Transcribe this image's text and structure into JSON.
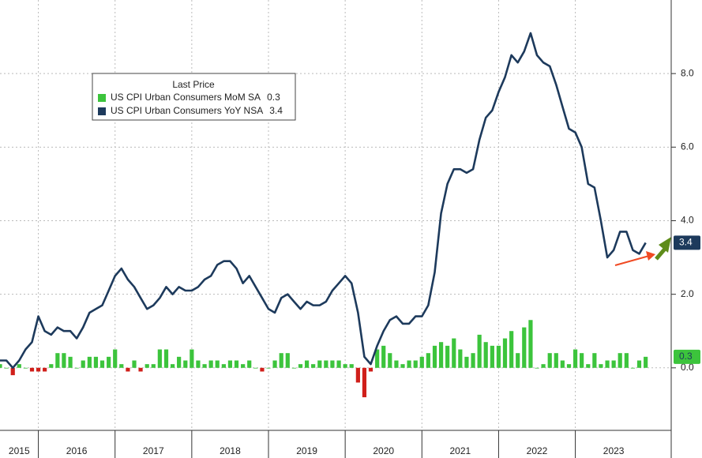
{
  "chart_data": {
    "type": "bar_line",
    "legend_title": "Last Price",
    "x": [
      2015.5,
      2015.583,
      2015.667,
      2015.75,
      2015.833,
      2015.917,
      2016,
      2016.083,
      2016.167,
      2016.25,
      2016.333,
      2016.417,
      2016.5,
      2016.583,
      2016.667,
      2016.75,
      2016.833,
      2016.917,
      2017,
      2017.083,
      2017.167,
      2017.25,
      2017.333,
      2017.417,
      2017.5,
      2017.583,
      2017.667,
      2017.75,
      2017.833,
      2017.917,
      2018,
      2018.083,
      2018.167,
      2018.25,
      2018.333,
      2018.417,
      2018.5,
      2018.583,
      2018.667,
      2018.75,
      2018.833,
      2018.917,
      2019,
      2019.083,
      2019.167,
      2019.25,
      2019.333,
      2019.417,
      2019.5,
      2019.583,
      2019.667,
      2019.75,
      2019.833,
      2019.917,
      2020,
      2020.083,
      2020.167,
      2020.25,
      2020.333,
      2020.417,
      2020.5,
      2020.583,
      2020.667,
      2020.75,
      2020.833,
      2020.917,
      2021,
      2021.083,
      2021.167,
      2021.25,
      2021.333,
      2021.417,
      2021.5,
      2021.583,
      2021.667,
      2021.75,
      2021.833,
      2021.917,
      2022,
      2022.083,
      2022.167,
      2022.25,
      2022.333,
      2022.417,
      2022.5,
      2022.583,
      2022.667,
      2022.75,
      2022.833,
      2022.917,
      2023,
      2023.083,
      2023.167,
      2023.25,
      2023.333,
      2023.417,
      2023.5,
      2023.583,
      2023.667,
      2023.75,
      2023.833,
      2023.917
    ],
    "series": [
      {
        "name": "US CPI Urban Consumers MoM SA",
        "type": "bar",
        "color": "#3cc43c",
        "negative_color": "#d01f1a",
        "values": [
          0.1,
          0.0,
          -0.2,
          0.1,
          0.0,
          -0.1,
          -0.1,
          -0.1,
          0.1,
          0.4,
          0.4,
          0.3,
          0.0,
          0.2,
          0.3,
          0.3,
          0.2,
          0.3,
          0.5,
          0.1,
          -0.1,
          0.2,
          -0.1,
          0.1,
          0.1,
          0.5,
          0.5,
          0.1,
          0.3,
          0.2,
          0.5,
          0.2,
          0.1,
          0.2,
          0.2,
          0.1,
          0.2,
          0.2,
          0.1,
          0.2,
          0.0,
          -0.1,
          0.0,
          0.2,
          0.4,
          0.4,
          0.0,
          0.1,
          0.2,
          0.1,
          0.2,
          0.2,
          0.2,
          0.2,
          0.1,
          0.1,
          -0.4,
          -0.8,
          -0.1,
          0.5,
          0.6,
          0.4,
          0.2,
          0.1,
          0.2,
          0.2,
          0.3,
          0.4,
          0.6,
          0.7,
          0.6,
          0.8,
          0.5,
          0.3,
          0.4,
          0.9,
          0.7,
          0.6,
          0.6,
          0.8,
          1.0,
          0.4,
          1.1,
          1.3,
          0.0,
          0.1,
          0.4,
          0.4,
          0.2,
          0.1,
          0.5,
          0.4,
          0.1,
          0.4,
          0.1,
          0.2,
          0.2,
          0.4,
          0.4,
          0.0,
          0.2,
          0.3
        ]
      },
      {
        "name": "US CPI Urban Consumers YoY NSA",
        "type": "line",
        "color": "#1d3a5c",
        "values": [
          0.2,
          0.2,
          0.0,
          0.2,
          0.5,
          0.7,
          1.4,
          1.0,
          0.9,
          1.1,
          1.0,
          1.0,
          0.8,
          1.1,
          1.5,
          1.6,
          1.7,
          2.1,
          2.5,
          2.7,
          2.4,
          2.2,
          1.9,
          1.6,
          1.7,
          1.9,
          2.2,
          2.0,
          2.2,
          2.1,
          2.1,
          2.2,
          2.4,
          2.5,
          2.8,
          2.9,
          2.9,
          2.7,
          2.3,
          2.5,
          2.2,
          1.9,
          1.6,
          1.5,
          1.9,
          2.0,
          1.8,
          1.6,
          1.8,
          1.7,
          1.7,
          1.8,
          2.1,
          2.3,
          2.5,
          2.3,
          1.5,
          0.3,
          0.1,
          0.6,
          1.0,
          1.3,
          1.4,
          1.2,
          1.2,
          1.4,
          1.4,
          1.7,
          2.6,
          4.2,
          5.0,
          5.4,
          5.4,
          5.3,
          5.4,
          6.2,
          6.8,
          7.0,
          7.5,
          7.9,
          8.5,
          8.3,
          8.6,
          9.1,
          8.5,
          8.3,
          8.2,
          7.7,
          7.1,
          6.5,
          6.4,
          6.0,
          5.0,
          4.9,
          4.0,
          3.0,
          3.2,
          3.7,
          3.7,
          3.2,
          3.1,
          3.4
        ]
      }
    ],
    "xlim": [
      2015.5,
      2024.25
    ],
    "xticks": [
      {
        "value": 2015,
        "label": "2015"
      },
      {
        "value": 2016,
        "label": "2016"
      },
      {
        "value": 2017,
        "label": "2017"
      },
      {
        "value": 2018,
        "label": "2018"
      },
      {
        "value": 2019,
        "label": "2019"
      },
      {
        "value": 2020,
        "label": "2020"
      },
      {
        "value": 2021,
        "label": "2021"
      },
      {
        "value": 2022,
        "label": "2022"
      },
      {
        "value": 2023,
        "label": "2023"
      }
    ],
    "ylim": [
      -1.7,
      10
    ],
    "yticks": [
      {
        "value": 0,
        "label": "0.0"
      },
      {
        "value": 2,
        "label": "2.0"
      },
      {
        "value": 4,
        "label": "4.0"
      },
      {
        "value": 6,
        "label": "6.0"
      },
      {
        "value": 8,
        "label": "8.0"
      }
    ],
    "grid": true
  }
}
